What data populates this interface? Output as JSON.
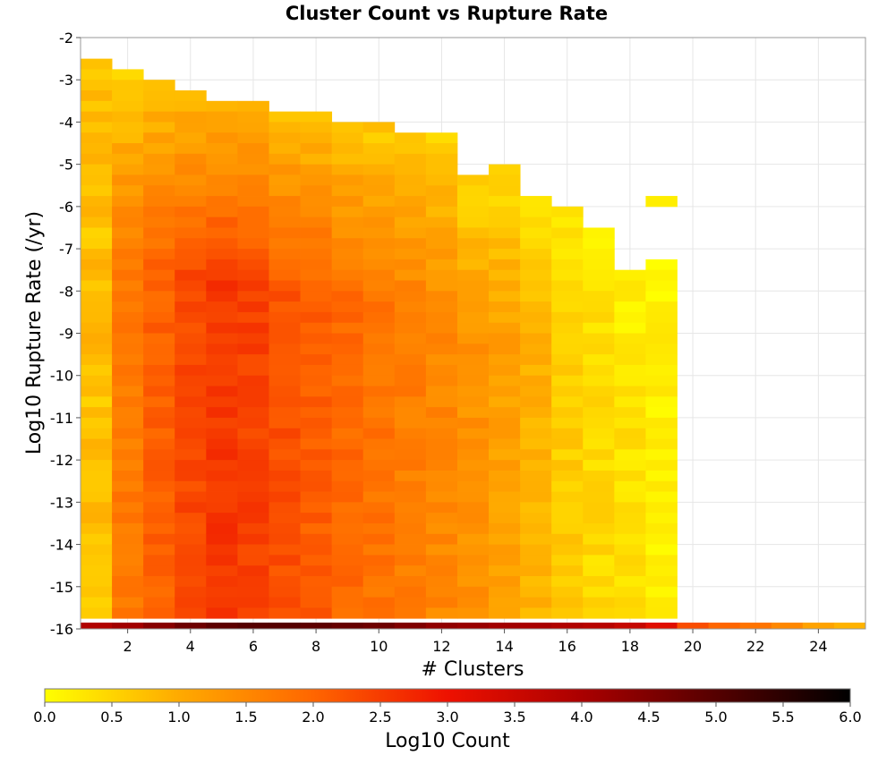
{
  "chart_data": {
    "type": "heatmap",
    "title": "Cluster Count vs Rupture Rate",
    "xlabel": "# Clusters",
    "ylabel": "Log10 Rupture Rate (/yr)",
    "xlim": [
      0.5,
      25.5
    ],
    "ylim": [
      -16,
      -2
    ],
    "x_ticks": [
      2,
      4,
      6,
      8,
      10,
      12,
      14,
      16,
      18,
      20,
      22,
      24
    ],
    "y_ticks": [
      -2,
      -3,
      -4,
      -5,
      -6,
      -7,
      -8,
      -9,
      -10,
      -11,
      -12,
      -13,
      -14,
      -15,
      -16
    ],
    "grid": true,
    "colorbar": {
      "label": "Log10 Count",
      "range": [
        0,
        6
      ],
      "ticks": [
        "0.0",
        "0.5",
        "1.0",
        "1.5",
        "2.0",
        "2.5",
        "3.0",
        "3.5",
        "4.0",
        "4.5",
        "5.0",
        "5.5",
        "6.0"
      ],
      "colormap": [
        "#ffff00",
        "#ffaa00",
        "#ff6600",
        "#ee1100",
        "#aa0000",
        "#550000",
        "#000000"
      ],
      "placement": "bottom"
    },
    "bin_width_y": 0.25,
    "columns": [
      {
        "x": 1,
        "y_top": -2.5,
        "value": 0.85
      },
      {
        "x": 2,
        "y_top": -2.75,
        "value": 1.7
      },
      {
        "x": 3,
        "y_top": -3.0,
        "value": 2.05
      },
      {
        "x": 4,
        "y_top": -3.25,
        "value": 2.35
      },
      {
        "x": 5,
        "y_top": -3.5,
        "value": 2.55
      },
      {
        "x": 6,
        "y_top": -3.5,
        "value": 2.45
      },
      {
        "x": 7,
        "y_top": -3.75,
        "value": 2.25
      },
      {
        "x": 8,
        "y_top": -3.75,
        "value": 2.1
      },
      {
        "x": 9,
        "y_top": -4.0,
        "value": 1.95
      },
      {
        "x": 10,
        "y_top": -4.0,
        "value": 1.8
      },
      {
        "x": 11,
        "y_top": -4.25,
        "value": 1.65
      },
      {
        "x": 12,
        "y_top": -4.25,
        "value": 1.5
      },
      {
        "x": 13,
        "y_top": -5.25,
        "value": 1.35
      },
      {
        "x": 14,
        "y_top": -5.0,
        "value": 1.15
      },
      {
        "x": 15,
        "y_top": -5.75,
        "value": 0.9
      },
      {
        "x": 16,
        "y_top": -6.0,
        "value": 0.6
      },
      {
        "x": 17,
        "y_top": -6.5,
        "value": 0.45
      },
      {
        "x": 18,
        "y_top": -7.5,
        "value": 0.35
      },
      {
        "x": 19,
        "y_top": -7.25,
        "value": 0.2
      }
    ],
    "extra_cells": [
      {
        "x": 19,
        "y": -5.75,
        "value": 0.2
      }
    ],
    "bottom_row": {
      "y": -16,
      "values": [
        3.9,
        4.1,
        4.4,
        4.7,
        4.9,
        5.0,
        5.0,
        4.9,
        4.8,
        4.7,
        4.5,
        4.3,
        4.2,
        4.1,
        4.0,
        3.9,
        3.8,
        3.6,
        3.2,
        2.3,
        2.0,
        1.8,
        1.5,
        1.1,
        0.9
      ]
    }
  }
}
